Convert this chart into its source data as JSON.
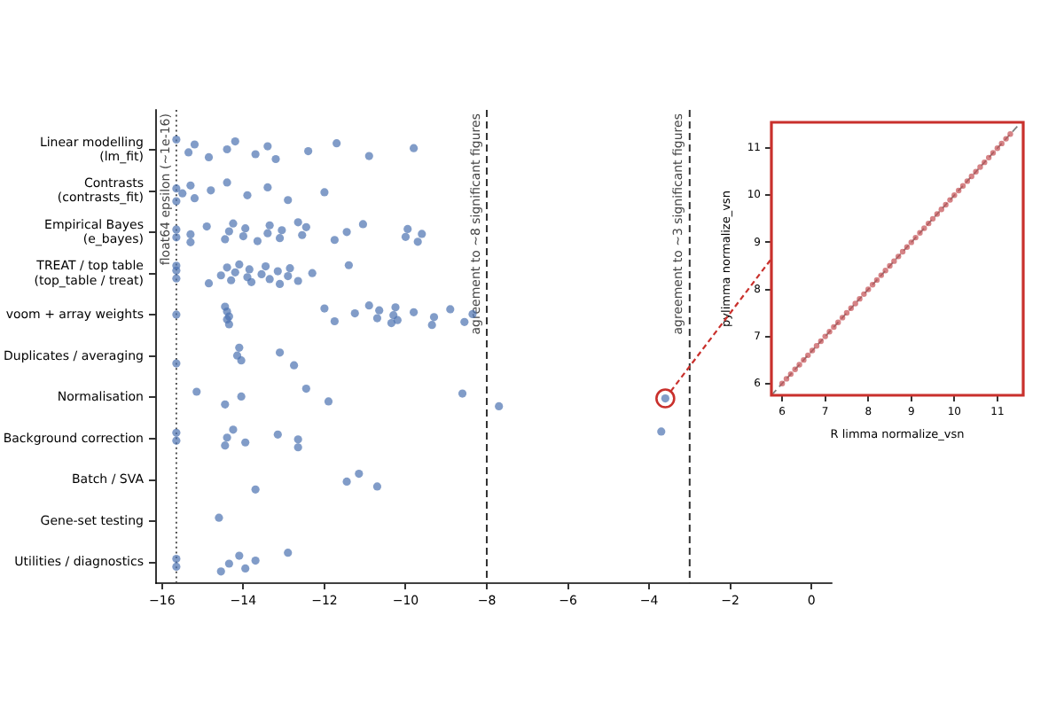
{
  "chart_data": [
    {
      "type": "scatter",
      "orientation": "horizontal",
      "categories": [
        "Linear modelling\n(lm_fit)",
        "Contrasts\n(contrasts_fit)",
        "Empirical Bayes\n(e_bayes)",
        "TREAT / top table\n(top_table / treat)",
        "voom + array weights",
        "Duplicates / averaging",
        "Normalisation",
        "Background correction",
        "Batch / SVA",
        "Gene-set testing",
        "Utilities / diagnostics"
      ],
      "series": [
        {
          "color": "#4c72b0",
          "values": [
            -15.65,
            -15.65,
            -15.65,
            -15.65,
            -15.65,
            -15.65,
            -15.15,
            -15.65,
            -13.7,
            -14.6,
            -15.65
          ]
        },
        {
          "color": "#4c72b0",
          "values": [
            -15.35,
            -15.65,
            -15.65,
            -15.65,
            -14.45,
            -14.15,
            -14.45,
            -15.65,
            -11.45,
            null,
            -15.65
          ]
        },
        {
          "color": "#4c72b0",
          "values": [
            -15.2,
            -15.5,
            -15.3,
            -15.65,
            -14.4,
            -14.1,
            -14.05,
            -14.45,
            -11.15,
            null,
            -14.55
          ]
        },
        {
          "color": "#4c72b0",
          "values": [
            -14.85,
            -15.3,
            -15.3,
            -14.85,
            -14.4,
            -14.05,
            -12.45,
            -14.4,
            -10.7,
            null,
            -14.35
          ]
        },
        {
          "color": "#4c72b0",
          "values": [
            -14.4,
            -15.2,
            -14.9,
            -14.55,
            -14.35,
            -13.1,
            -11.9,
            -14.25,
            null,
            null,
            -14.1
          ]
        },
        {
          "color": "#4c72b0",
          "values": [
            -14.2,
            -14.8,
            -14.45,
            -14.4,
            -14.35,
            -12.75,
            -8.6,
            -13.95,
            null,
            null,
            -13.95
          ]
        },
        {
          "color": "#4c72b0",
          "values": [
            -13.7,
            -14.4,
            -14.35,
            -14.3,
            -12.0,
            null,
            -7.7,
            -13.15,
            null,
            null,
            -13.7
          ]
        },
        {
          "color": "#4c72b0",
          "values": [
            -13.4,
            -13.9,
            -14.25,
            -14.2,
            -11.75,
            null,
            -3.6,
            -12.65,
            null,
            null,
            -12.9
          ]
        },
        {
          "color": "#4c72b0",
          "values": [
            -13.2,
            -13.4,
            -14.0,
            -14.1,
            -11.25,
            null,
            null,
            -12.65,
            null,
            null,
            null
          ]
        },
        {
          "color": "#4c72b0",
          "values": [
            -12.4,
            -12.9,
            -13.95,
            -13.9,
            -10.9,
            null,
            null,
            -3.7,
            null,
            null,
            null
          ]
        },
        {
          "color": "#4c72b0",
          "values": [
            -11.7,
            -12.0,
            -13.65,
            -13.85,
            -10.7,
            null,
            null,
            null,
            null,
            null,
            null
          ]
        },
        {
          "color": "#4c72b0",
          "values": [
            -10.9,
            null,
            -13.4,
            -13.8,
            -10.65,
            null,
            null,
            null,
            null,
            null,
            null
          ]
        },
        {
          "color": "#4c72b0",
          "values": [
            -9.8,
            null,
            -13.35,
            -13.55,
            -10.35,
            null,
            null,
            null,
            null,
            null,
            null
          ]
        },
        {
          "color": "#4c72b0",
          "values": [
            null,
            null,
            -13.1,
            -13.45,
            -10.3,
            null,
            null,
            null,
            null,
            null,
            null
          ]
        },
        {
          "color": "#4c72b0",
          "values": [
            null,
            null,
            -13.05,
            -13.35,
            -10.25,
            null,
            null,
            null,
            null,
            null,
            null
          ]
        },
        {
          "color": "#4c72b0",
          "values": [
            null,
            null,
            -12.65,
            -13.15,
            -10.2,
            null,
            null,
            null,
            null,
            null,
            null
          ]
        },
        {
          "color": "#4c72b0",
          "values": [
            null,
            null,
            -12.55,
            -13.1,
            -9.8,
            null,
            null,
            null,
            null,
            null,
            null
          ]
        },
        {
          "color": "#4c72b0",
          "values": [
            null,
            null,
            -12.45,
            -12.9,
            -9.35,
            null,
            null,
            null,
            null,
            null,
            null
          ]
        },
        {
          "color": "#4c72b0",
          "values": [
            null,
            null,
            -11.75,
            -12.85,
            -9.3,
            null,
            null,
            null,
            null,
            null,
            null
          ]
        },
        {
          "color": "#4c72b0",
          "values": [
            null,
            null,
            -11.45,
            -12.65,
            -8.9,
            null,
            null,
            null,
            null,
            null,
            null
          ]
        },
        {
          "color": "#4c72b0",
          "values": [
            null,
            null,
            -11.05,
            -12.3,
            -8.55,
            null,
            null,
            null,
            null,
            null,
            null
          ]
        },
        {
          "color": "#4c72b0",
          "values": [
            null,
            null,
            -10.0,
            -11.4,
            -8.35,
            null,
            null,
            null,
            null,
            null,
            null
          ]
        },
        {
          "color": "#4c72b0",
          "values": [
            null,
            null,
            -9.95,
            null,
            null,
            null,
            null,
            null,
            null,
            null,
            null
          ]
        },
        {
          "color": "#4c72b0",
          "values": [
            null,
            null,
            -9.7,
            null,
            null,
            null,
            null,
            null,
            null,
            null,
            null
          ]
        },
        {
          "color": "#4c72b0",
          "values": [
            null,
            null,
            -9.6,
            null,
            null,
            null,
            null,
            null,
            null,
            null,
            null
          ]
        }
      ],
      "xlim": [
        -16.15,
        0.5
      ],
      "xticks": [
        {
          "value": -16,
          "label": "−16"
        },
        {
          "value": -14,
          "label": "−14"
        },
        {
          "value": -12,
          "label": "−12"
        },
        {
          "value": -10,
          "label": "−10"
        },
        {
          "value": -8,
          "label": "−8"
        },
        {
          "value": -6,
          "label": "−6"
        },
        {
          "value": -4,
          "label": "−4"
        },
        {
          "value": -2,
          "label": "−2"
        },
        0
      ],
      "marker": "circle",
      "ref_lines": [
        {
          "axis": "x",
          "value": -15.65,
          "label": "float64 epsilon (~1e-16)",
          "color": "#444444",
          "line_style": "dotted"
        },
        {
          "axis": "x",
          "value": -8,
          "label": "agreement to ~8 significant figures",
          "color": "#333333",
          "line_style": "dashed"
        },
        {
          "axis": "x",
          "value": -3,
          "label": "agreement to ~3 significant figures",
          "color": "#333333",
          "line_style": "dashed"
        }
      ]
    },
    {
      "type": "scatter",
      "xlabel": "R limma normalize_vsn",
      "ylabel": "pylimma normalize_vsn",
      "xlim": [
        5.75,
        11.6
      ],
      "ylim": [
        5.75,
        11.55
      ],
      "xticks": [
        6,
        7,
        8,
        9,
        10,
        11
      ],
      "yticks": [
        6,
        7,
        8,
        9,
        10,
        11
      ],
      "series": [
        {
          "type": "line",
          "x": [
            5.75,
            11.55
          ],
          "values": [
            5.75,
            11.55
          ],
          "color": "#808080",
          "line_style": "dashed",
          "marker": "none"
        },
        {
          "color": "#c44e52",
          "marker": "circle",
          "x": [
            6.0,
            6.1,
            6.2,
            6.3,
            6.4,
            6.5,
            6.6,
            6.7,
            6.8,
            6.9,
            7.0,
            7.1,
            7.2,
            7.3,
            7.4,
            7.5,
            7.6,
            7.7,
            7.8,
            7.9,
            8.0,
            8.1,
            8.2,
            8.3,
            8.4,
            8.5,
            8.6,
            8.7,
            8.8,
            8.9,
            9.0,
            9.1,
            9.2,
            9.3,
            9.4,
            9.5,
            9.6,
            9.7,
            9.8,
            9.9,
            10.0,
            10.1,
            10.2,
            10.3,
            10.4,
            10.5,
            10.6,
            10.7,
            10.8,
            10.9,
            11.0,
            11.1,
            11.2,
            11.3
          ],
          "values": [
            6.0,
            6.1,
            6.2,
            6.3,
            6.4,
            6.5,
            6.6,
            6.7,
            6.8,
            6.9,
            7.0,
            7.1,
            7.2,
            7.3,
            7.4,
            7.5,
            7.6,
            7.7,
            7.8,
            7.9,
            8.0,
            8.1,
            8.2,
            8.3,
            8.4,
            8.5,
            8.6,
            8.7,
            8.8,
            8.9,
            9.0,
            9.1,
            9.2,
            9.3,
            9.4,
            9.5,
            9.6,
            9.7,
            9.8,
            9.9,
            10.0,
            10.1,
            10.2,
            10.3,
            10.4,
            10.5,
            10.6,
            10.7,
            10.8,
            10.9,
            11.0,
            11.1,
            11.2,
            11.3
          ]
        }
      ]
    }
  ]
}
